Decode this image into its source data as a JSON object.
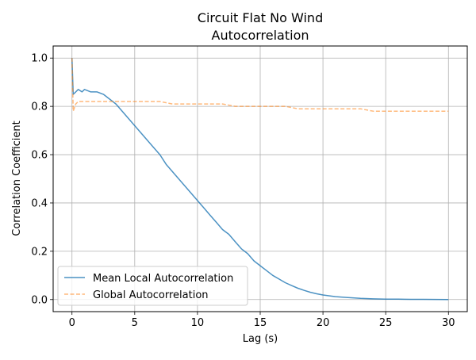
{
  "chart_data": {
    "type": "line",
    "title_line1": "Circuit Flat No Wind",
    "title_line2": "Autocorrelation",
    "xlabel": "Lag (s)",
    "ylabel": "Correlation Coefficient",
    "xlim": [
      -1.5,
      31.5
    ],
    "ylim": [
      -0.05,
      1.05
    ],
    "x_ticks": [
      0,
      5,
      10,
      15,
      20,
      25,
      30
    ],
    "y_ticks": [
      0.0,
      0.2,
      0.4,
      0.6,
      0.8,
      1.0
    ],
    "x_tick_labels": [
      "0",
      "5",
      "10",
      "15",
      "20",
      "25",
      "30"
    ],
    "y_tick_labels": [
      "0.0",
      "0.2",
      "0.4",
      "0.6",
      "0.8",
      "1.0"
    ],
    "grid": true,
    "legend_position": "lower-left",
    "series": [
      {
        "name": "Mean Local Autocorrelation",
        "color": "#1f77b4",
        "style": "solid",
        "x": [
          0,
          0.1,
          0.3,
          0.5,
          0.8,
          1,
          1.5,
          2,
          2.5,
          3,
          3.5,
          4,
          4.5,
          5,
          5.5,
          6,
          6.5,
          7,
          7.5,
          8,
          8.5,
          9,
          9.5,
          10,
          10.5,
          11,
          11.5,
          12,
          12.5,
          13,
          13.5,
          14,
          14.5,
          15,
          15.5,
          16,
          16.5,
          17,
          17.5,
          18,
          18.5,
          19,
          19.5,
          20,
          21,
          22,
          23,
          24,
          25,
          26,
          27,
          28,
          29,
          30
        ],
        "y": [
          1.0,
          0.85,
          0.86,
          0.87,
          0.86,
          0.87,
          0.86,
          0.86,
          0.85,
          0.83,
          0.81,
          0.78,
          0.75,
          0.72,
          0.69,
          0.66,
          0.63,
          0.6,
          0.56,
          0.53,
          0.5,
          0.47,
          0.44,
          0.41,
          0.38,
          0.35,
          0.32,
          0.29,
          0.27,
          0.24,
          0.21,
          0.19,
          0.16,
          0.14,
          0.12,
          0.1,
          0.085,
          0.07,
          0.058,
          0.047,
          0.038,
          0.03,
          0.024,
          0.019,
          0.012,
          0.008,
          0.005,
          0.003,
          0.002,
          0.0015,
          0.001,
          0.0008,
          0.0005,
          0.0004
        ]
      },
      {
        "name": "Global Autocorrelation",
        "color": "#ff7f0e",
        "style": "dashed",
        "x": [
          0,
          0.1,
          0.3,
          0.5,
          1,
          2,
          3,
          4,
          5,
          6,
          7,
          8,
          9,
          10,
          11,
          12,
          13,
          14,
          15,
          16,
          17,
          18,
          19,
          20,
          21,
          22,
          23,
          24,
          25,
          26,
          27,
          28,
          29,
          30
        ],
        "y": [
          1.0,
          0.78,
          0.81,
          0.82,
          0.82,
          0.82,
          0.82,
          0.82,
          0.82,
          0.82,
          0.82,
          0.81,
          0.81,
          0.81,
          0.81,
          0.81,
          0.8,
          0.8,
          0.8,
          0.8,
          0.8,
          0.79,
          0.79,
          0.79,
          0.79,
          0.79,
          0.79,
          0.78,
          0.78,
          0.78,
          0.78,
          0.78,
          0.78,
          0.78
        ]
      }
    ]
  }
}
